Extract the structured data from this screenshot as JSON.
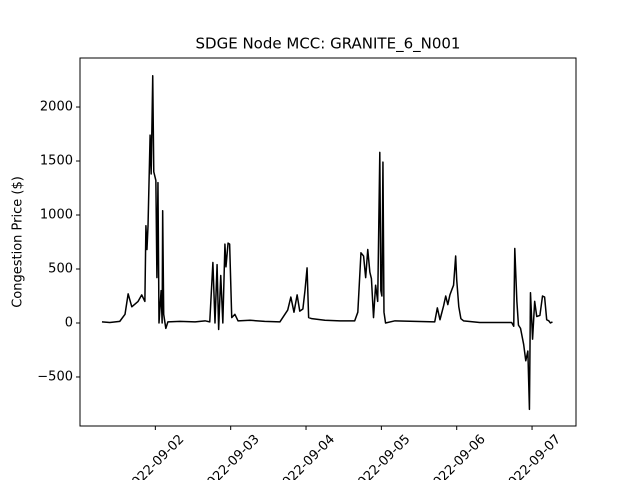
{
  "chart_data": {
    "type": "line",
    "title": "SDGE Node MCC: GRANITE_6_N001",
    "y_label": "Congestion Price ($)",
    "x": [
      "2022-09-01T07:00",
      "2022-09-01T09:30",
      "2022-09-01T12:40",
      "2022-09-01T14:20",
      "2022-09-01T15:20",
      "2022-09-01T16:30",
      "2022-09-01T18:30",
      "2022-09-01T19:40",
      "2022-09-01T20:40",
      "2022-09-01T21:00",
      "2022-09-01T21:20",
      "2022-09-01T21:40",
      "2022-09-01T22:20",
      "2022-09-01T22:40",
      "2022-09-01T23:10",
      "2022-09-01T23:30",
      "2022-09-02T00:10",
      "2022-09-02T00:30",
      "2022-09-02T00:50",
      "2022-09-02T01:10",
      "2022-09-02T01:50",
      "2022-09-02T02:10",
      "2022-09-02T02:20",
      "2022-09-02T02:40",
      "2022-09-02T03:20",
      "2022-09-02T04:00",
      "2022-09-02T07:50",
      "2022-09-02T12:40",
      "2022-09-02T15:50",
      "2022-09-02T17:20",
      "2022-09-02T18:20",
      "2022-09-02T19:00",
      "2022-09-02T19:40",
      "2022-09-02T20:10",
      "2022-09-02T20:50",
      "2022-09-02T21:30",
      "2022-09-02T22:10",
      "2022-09-02T22:30",
      "2022-09-02T23:10",
      "2022-09-02T23:40",
      "2022-09-03T00:20",
      "2022-09-03T01:20",
      "2022-09-03T02:20",
      "2022-09-03T06:10",
      "2022-09-03T10:50",
      "2022-09-03T15:40",
      "2022-09-03T18:10",
      "2022-09-03T19:10",
      "2022-09-03T20:10",
      "2022-09-03T21:10",
      "2022-09-03T22:00",
      "2022-09-03T23:00",
      "2022-09-03T23:40",
      "2022-09-04T00:20",
      "2022-09-04T00:50",
      "2022-09-04T01:50",
      "2022-09-04T06:00",
      "2022-09-04T10:50",
      "2022-09-04T15:30",
      "2022-09-04T16:30",
      "2022-09-04T17:30",
      "2022-09-04T18:20",
      "2022-09-04T19:00",
      "2022-09-04T19:40",
      "2022-09-04T20:20",
      "2022-09-04T20:50",
      "2022-09-04T21:30",
      "2022-09-04T22:10",
      "2022-09-04T22:50",
      "2022-09-04T23:30",
      "2022-09-04T23:50",
      "2022-09-05T00:10",
      "2022-09-05T00:30",
      "2022-09-05T00:50",
      "2022-09-05T01:20",
      "2022-09-05T04:20",
      "2022-09-05T10:40",
      "2022-09-05T17:00",
      "2022-09-05T17:50",
      "2022-09-05T18:40",
      "2022-09-05T19:50",
      "2022-09-05T20:30",
      "2022-09-05T21:10",
      "2022-09-05T21:50",
      "2022-09-05T22:20",
      "2022-09-05T23:00",
      "2022-09-05T23:40",
      "2022-09-06T00:00",
      "2022-09-06T00:40",
      "2022-09-06T01:20",
      "2022-09-06T02:10",
      "2022-09-06T07:20",
      "2022-09-06T13:40",
      "2022-09-06T17:30",
      "2022-09-06T18:10",
      "2022-09-06T18:30",
      "2022-09-06T19:10",
      "2022-09-06T19:40",
      "2022-09-06T20:20",
      "2022-09-06T21:20",
      "2022-09-06T22:00",
      "2022-09-06T22:40",
      "2022-09-06T23:10",
      "2022-09-06T23:30",
      "2022-09-07T00:10",
      "2022-09-07T00:50",
      "2022-09-07T01:30",
      "2022-09-07T02:30",
      "2022-09-07T03:20",
      "2022-09-07T04:00",
      "2022-09-07T04:40",
      "2022-09-07T05:20",
      "2022-09-07T05:50",
      "2022-09-07T06:30"
    ],
    "series": [
      {
        "color": "#000000",
        "values": [
          10,
          5,
          15,
          80,
          270,
          150,
          200,
          260,
          200,
          900,
          680,
          900,
          1740,
          1380,
          2290,
          1400,
          1320,
          420,
          1300,
          0,
          300,
          0,
          1040,
          80,
          -50,
          10,
          15,
          10,
          20,
          10,
          560,
          0,
          540,
          -60,
          440,
          0,
          730,
          520,
          740,
          730,
          50,
          80,
          20,
          25,
          15,
          10,
          120,
          240,
          100,
          260,
          110,
          130,
          300,
          510,
          50,
          40,
          25,
          20,
          20,
          100,
          650,
          620,
          420,
          680,
          470,
          410,
          50,
          350,
          200,
          1580,
          300,
          250,
          1490,
          100,
          0,
          20,
          15,
          10,
          140,
          30,
          160,
          250,
          170,
          260,
          300,
          350,
          620,
          400,
          150,
          40,
          20,
          5,
          5,
          5,
          -30,
          690,
          200,
          -20,
          -50,
          -200,
          -350,
          -260,
          -800,
          280,
          -150,
          200,
          60,
          70,
          250,
          240,
          30,
          20,
          0,
          10
        ]
      }
    ],
    "xlim": [
      "2022-09-01T00:00",
      "2022-09-07T14:00"
    ],
    "xticks": [
      "2022-09-02",
      "2022-09-03",
      "2022-09-04",
      "2022-09-05",
      "2022-09-06",
      "2022-09-07"
    ],
    "ylim": [
      -954,
      2454
    ],
    "yticks": [
      {
        "value": -500,
        "label": "−500"
      },
      0,
      500,
      1000,
      1500,
      2000
    ]
  }
}
